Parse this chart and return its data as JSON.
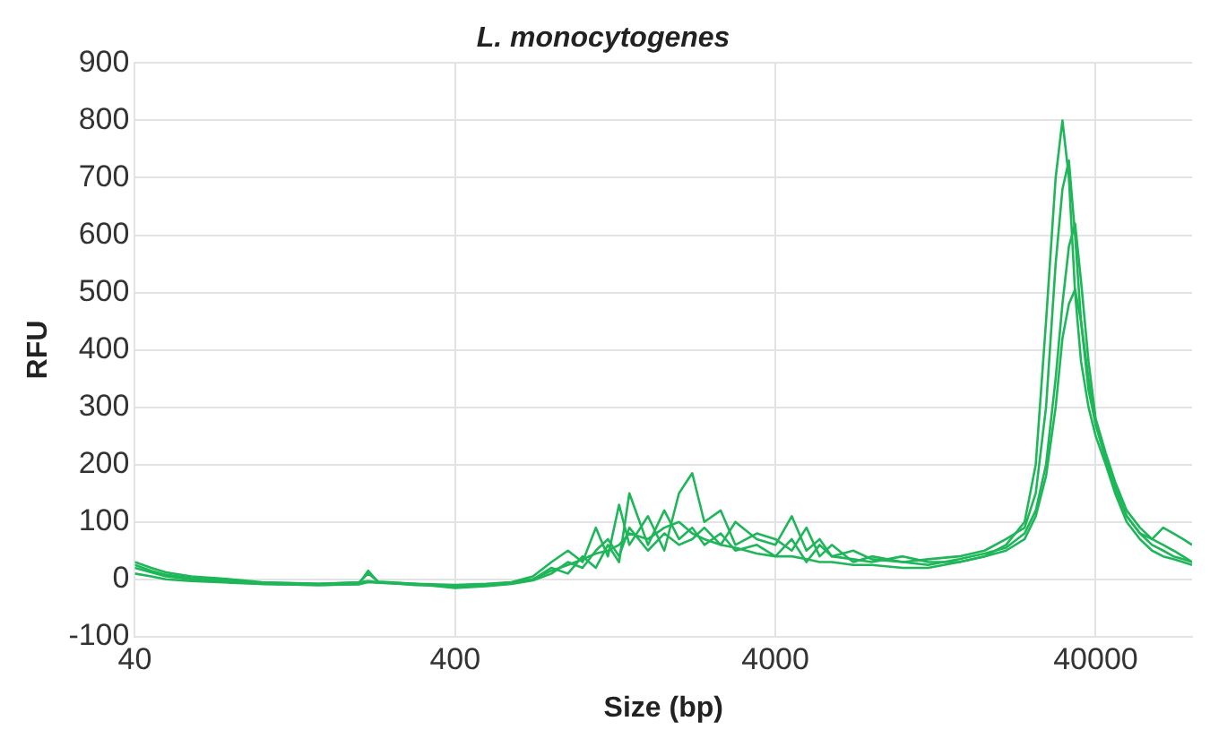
{
  "chart_data": {
    "type": "line",
    "title": "L. monocytogenes",
    "xlabel": "Size (bp)",
    "ylabel": "RFU",
    "log": "x",
    "grid": true,
    "legend": false,
    "marker": "none",
    "line_style": "solid",
    "xlim": [
      40,
      80000
    ],
    "xticks": [
      40,
      400,
      4000,
      40000
    ],
    "ylim": [
      -100,
      900
    ],
    "yticks": [
      -100,
      0,
      100,
      200,
      300,
      400,
      500,
      600,
      700,
      800,
      900
    ],
    "x": [
      40,
      45,
      50,
      60,
      80,
      100,
      150,
      200,
      214,
      230,
      300,
      400,
      500,
      600,
      700,
      800,
      900,
      1000,
      1100,
      1200,
      1300,
      1400,
      1600,
      1800,
      2000,
      2200,
      2400,
      2700,
      3000,
      3500,
      4000,
      4500,
      5000,
      5500,
      6000,
      7000,
      8000,
      10000,
      12000,
      15000,
      18000,
      21000,
      24000,
      26000,
      28000,
      30000,
      31500,
      33000,
      34500,
      36000,
      38000,
      40000,
      43000,
      46000,
      50000,
      55000,
      60000,
      65000,
      70000,
      75000,
      80000
    ],
    "series": [
      {
        "color": "#1fb65a",
        "values": [
          30,
          20,
          12,
          5,
          0,
          -5,
          -8,
          -5,
          -3,
          -5,
          -8,
          -10,
          -8,
          -5,
          0,
          20,
          10,
          40,
          20,
          60,
          30,
          150,
          60,
          120,
          70,
          90,
          60,
          80,
          50,
          60,
          40,
          70,
          30,
          60,
          40,
          35,
          30,
          40,
          30,
          30,
          40,
          60,
          100,
          200,
          450,
          700,
          800,
          700,
          500,
          380,
          300,
          250,
          200,
          150,
          100,
          70,
          50,
          40,
          35,
          30,
          25
        ]
      },
      {
        "color": "#1fb65a",
        "values": [
          20,
          12,
          5,
          0,
          -5,
          -8,
          -10,
          -8,
          15,
          -5,
          -10,
          -12,
          -10,
          -5,
          5,
          30,
          50,
          30,
          90,
          40,
          130,
          60,
          110,
          50,
          150,
          185,
          100,
          120,
          60,
          80,
          70,
          50,
          90,
          40,
          60,
          30,
          40,
          30,
          35,
          40,
          50,
          70,
          90,
          150,
          300,
          550,
          680,
          730,
          600,
          450,
          330,
          270,
          210,
          160,
          110,
          80,
          70,
          90,
          80,
          70,
          60
        ]
      },
      {
        "color": "#1fb65a",
        "values": [
          25,
          15,
          8,
          2,
          -3,
          -6,
          -8,
          -6,
          10,
          -4,
          -8,
          -15,
          -12,
          -8,
          -2,
          10,
          30,
          20,
          50,
          70,
          40,
          90,
          50,
          80,
          60,
          70,
          90,
          60,
          100,
          70,
          60,
          110,
          50,
          70,
          40,
          50,
          35,
          30,
          25,
          35,
          45,
          55,
          80,
          120,
          200,
          350,
          480,
          580,
          620,
          520,
          380,
          280,
          220,
          170,
          120,
          90,
          70,
          60,
          50,
          40,
          30
        ]
      },
      {
        "color": "#1fb65a",
        "values": [
          10,
          5,
          0,
          -3,
          -6,
          -8,
          -10,
          -9,
          -5,
          -6,
          -9,
          -12,
          -10,
          -6,
          0,
          15,
          25,
          35,
          45,
          50,
          60,
          80,
          70,
          90,
          100,
          80,
          70,
          60,
          55,
          45,
          40,
          40,
          35,
          30,
          30,
          25,
          25,
          20,
          20,
          30,
          40,
          50,
          70,
          110,
          180,
          300,
          420,
          480,
          505,
          450,
          350,
          270,
          210,
          160,
          110,
          80,
          60,
          50,
          40,
          35,
          30
        ]
      }
    ]
  }
}
